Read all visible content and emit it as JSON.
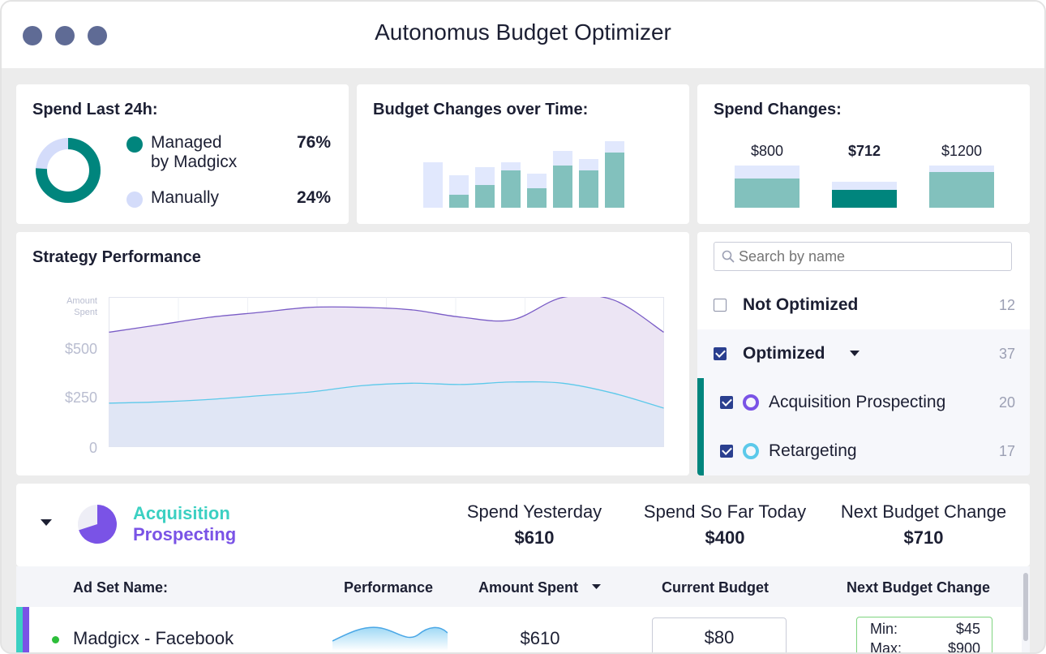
{
  "window": {
    "title": "Autonomus Budget Optimizer"
  },
  "spend24h": {
    "title": "Spend Last 24h:",
    "managed": {
      "label_line1": "Managed",
      "label_line2": "by Madgicx",
      "pct": "76%",
      "color": "#00857d"
    },
    "manual": {
      "label": "Manually",
      "pct": "24%",
      "color": "#d4dcfa"
    },
    "managed_share": 0.76
  },
  "budgetChanges": {
    "title": "Budget Changes over Time:",
    "colors": {
      "light": "#e1e8fd",
      "dark": "#82c1bd"
    }
  },
  "spendChanges": {
    "title": "Spend Changes:",
    "items": [
      {
        "label": "$800",
        "bold": false
      },
      {
        "label": "$712",
        "bold": true
      },
      {
        "label": "$1200",
        "bold": false
      }
    ]
  },
  "strategy": {
    "title": "Strategy Performance",
    "y_axis_title_line1": "Amount",
    "y_axis_title_line2": "Spent",
    "ticks": [
      "$500",
      "$250",
      "0"
    ],
    "colors": {
      "series1": "#7a5cc6",
      "series1_fill": "#ece5f4",
      "series2": "#5cc9ea",
      "series2_fill": "#e0e6f5"
    }
  },
  "chart_data": {
    "type": "area",
    "title": "Strategy Performance",
    "ylabel": "Amount Spent",
    "ylim": [
      0,
      600
    ],
    "yticks": [
      "0",
      "$250",
      "$500"
    ],
    "series": [
      {
        "values": [
          460,
          490,
          520,
          540,
          560,
          560,
          550,
          520,
          510,
          600,
          590,
          460
        ]
      },
      {
        "values": [
          175,
          180,
          190,
          205,
          220,
          245,
          255,
          250,
          260,
          255,
          215,
          155
        ]
      }
    ]
  },
  "filters": {
    "search_placeholder": "Search by name",
    "rows": [
      {
        "label": "Not Optimized",
        "count": "12",
        "checked": false
      },
      {
        "label": "Optimized",
        "count": "37",
        "checked": true
      },
      {
        "label": "Acquisition Prospecting",
        "count": "20",
        "checked": true,
        "ring_color": "#7a53e6"
      },
      {
        "label": "Retargeting",
        "count": "17",
        "checked": true,
        "ring_color": "#5cc9ea"
      }
    ]
  },
  "campaign": {
    "name_line1": "Acquisition",
    "name_line2": "Prospecting",
    "pie_share": 0.7,
    "stats": [
      {
        "label": "Spend Yesterday",
        "value": "$610"
      },
      {
        "label": "Spend So Far Today",
        "value": "$400"
      },
      {
        "label": "Next Budget Change",
        "value": "$710"
      }
    ]
  },
  "table": {
    "headers": [
      "Ad Set Name:",
      "Performance",
      "Amount Spent",
      "Current Budget",
      "Next Budget Change"
    ],
    "rows": [
      {
        "name": "Madgicx - Facebook",
        "amount": "$610",
        "budget": "$80",
        "min_label": "Min:",
        "min": "$45",
        "max_label": "Max:",
        "max": "$900"
      }
    ]
  }
}
